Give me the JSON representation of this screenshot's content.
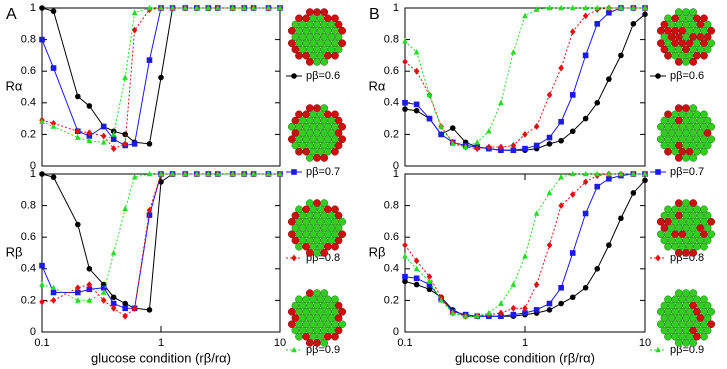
{
  "chart_data": [
    {
      "type": "line",
      "panel": "A",
      "ylabel": "Rα",
      "log_x": true,
      "x": [
        0.1,
        0.125,
        0.2,
        0.25,
        0.33,
        0.4,
        0.5,
        0.6,
        0.8,
        1,
        1.25,
        1.6,
        2,
        2.5,
        3,
        4,
        5,
        6,
        8,
        10
      ],
      "xlim": [
        0.1,
        10
      ],
      "ylim": [
        0,
        1
      ],
      "yticks": [
        0,
        0.2,
        0.4,
        0.6,
        0.8,
        1
      ],
      "series": [
        {
          "name": "pβ=0.6",
          "color": "#000000",
          "marker": "circle",
          "dashed": false,
          "values": [
            1.0,
            0.98,
            0.44,
            0.38,
            0.25,
            0.22,
            0.2,
            0.15,
            0.14,
            0.56,
            1,
            1,
            1,
            1,
            1,
            1,
            1,
            1,
            1,
            1
          ]
        },
        {
          "name": "pβ=0.7",
          "color": "#1a1aee",
          "marker": "square",
          "dashed": false,
          "values": [
            0.8,
            0.62,
            0.22,
            0.19,
            0.25,
            0.17,
            0.13,
            0.14,
            0.67,
            1,
            1,
            1,
            1,
            1,
            1,
            1,
            1,
            1,
            1,
            1
          ]
        },
        {
          "name": "pβ=0.8",
          "color": "#e01010",
          "marker": "diamond",
          "dashed": true,
          "values": [
            0.29,
            0.27,
            0.22,
            0.21,
            0.19,
            0.11,
            0.14,
            0.86,
            0.99,
            1,
            1,
            1,
            1,
            1,
            1,
            1,
            1,
            1,
            1,
            1
          ]
        },
        {
          "name": "pβ=0.9",
          "color": "#22dd22",
          "marker": "triangle",
          "dashed": true,
          "values": [
            0.28,
            0.25,
            0.18,
            0.16,
            0.15,
            0.2,
            0.56,
            0.97,
            1,
            1,
            1,
            1,
            1,
            1,
            1,
            1,
            1,
            1,
            1,
            1
          ]
        }
      ]
    },
    {
      "type": "line",
      "ylabel": "Rβ",
      "xlabel": "glucose condition (rβ/rα)",
      "log_x": true,
      "x": [
        0.1,
        0.125,
        0.2,
        0.25,
        0.33,
        0.4,
        0.5,
        0.6,
        0.8,
        1,
        1.25,
        1.6,
        2,
        2.5,
        3,
        4,
        5,
        6,
        8,
        10
      ],
      "xlim": [
        0.1,
        10
      ],
      "xticks": [
        0.1,
        1,
        10
      ],
      "ylim": [
        0,
        1
      ],
      "yticks": [
        0,
        0.2,
        0.4,
        0.6,
        0.8,
        1
      ],
      "series": [
        {
          "color": "#000000",
          "marker": "circle",
          "dashed": false,
          "values": [
            1.0,
            0.98,
            0.68,
            0.4,
            0.3,
            0.22,
            0.18,
            0.15,
            0.14,
            0.95,
            1,
            1,
            1,
            1,
            1,
            1,
            1,
            1,
            1,
            1
          ]
        },
        {
          "color": "#1a1aee",
          "marker": "square",
          "dashed": false,
          "values": [
            0.42,
            0.25,
            0.25,
            0.27,
            0.28,
            0.18,
            0.15,
            0.15,
            0.74,
            1,
            1,
            1,
            1,
            1,
            1,
            1,
            1,
            1,
            1,
            1
          ]
        },
        {
          "color": "#e01010",
          "marker": "diamond",
          "dashed": true,
          "values": [
            0.19,
            0.2,
            0.28,
            0.3,
            0.2,
            0.15,
            0.1,
            0.15,
            0.77,
            1,
            1,
            1,
            1,
            1,
            1,
            1,
            1,
            1,
            1,
            1
          ]
        },
        {
          "color": "#22dd22",
          "marker": "triangle",
          "dashed": true,
          "values": [
            0.3,
            0.28,
            0.2,
            0.2,
            0.25,
            0.5,
            0.78,
            0.98,
            1,
            1,
            1,
            1,
            1,
            1,
            1,
            1,
            1,
            1,
            1,
            1
          ]
        }
      ]
    },
    {
      "type": "line",
      "panel": "B",
      "ylabel": "Rα",
      "log_x": true,
      "x": [
        0.1,
        0.125,
        0.16,
        0.2,
        0.25,
        0.32,
        0.4,
        0.5,
        0.63,
        0.8,
        1,
        1.25,
        1.6,
        2,
        2.5,
        3.2,
        4,
        5,
        6.3,
        8,
        10
      ],
      "xlim": [
        0.1,
        10
      ],
      "ylim": [
        0,
        1
      ],
      "yticks": [
        0,
        0.2,
        0.4,
        0.6,
        0.8,
        1
      ],
      "series": [
        {
          "name": "pβ=0.6",
          "color": "#000000",
          "marker": "circle",
          "dashed": false,
          "values": [
            0.36,
            0.35,
            0.3,
            0.2,
            0.24,
            0.15,
            0.12,
            0.11,
            0.1,
            0.1,
            0.1,
            0.11,
            0.14,
            0.16,
            0.22,
            0.3,
            0.4,
            0.55,
            0.7,
            0.9,
            0.96
          ]
        },
        {
          "name": "pβ=0.7",
          "color": "#1a1aee",
          "marker": "square",
          "dashed": false,
          "values": [
            0.4,
            0.39,
            0.3,
            0.2,
            0.15,
            0.13,
            0.12,
            0.11,
            0.1,
            0.1,
            0.11,
            0.13,
            0.18,
            0.28,
            0.45,
            0.7,
            0.9,
            0.97,
            1,
            1,
            1
          ]
        },
        {
          "name": "pβ=0.8",
          "color": "#e01010",
          "marker": "diamond",
          "dashed": true,
          "values": [
            0.66,
            0.6,
            0.45,
            0.25,
            0.15,
            0.12,
            0.11,
            0.12,
            0.12,
            0.13,
            0.2,
            0.25,
            0.45,
            0.62,
            0.85,
            0.95,
            0.99,
            1,
            1,
            1,
            1
          ]
        },
        {
          "name": "pβ=0.9",
          "color": "#22dd22",
          "marker": "triangle",
          "dashed": true,
          "values": [
            0.79,
            0.72,
            0.45,
            0.25,
            0.14,
            0.12,
            0.15,
            0.22,
            0.4,
            0.72,
            0.95,
            0.99,
            1,
            1,
            1,
            1,
            1,
            1,
            1,
            1,
            1
          ]
        }
      ]
    },
    {
      "type": "line",
      "ylabel": "Rβ",
      "xlabel": "glucose condition (rβ/rα)",
      "log_x": true,
      "x": [
        0.1,
        0.125,
        0.16,
        0.2,
        0.25,
        0.32,
        0.4,
        0.5,
        0.63,
        0.8,
        1,
        1.25,
        1.6,
        2,
        2.5,
        3.2,
        4,
        5,
        6.3,
        8,
        10
      ],
      "xlim": [
        0.1,
        10
      ],
      "xticks": [
        0.1,
        1,
        10
      ],
      "ylim": [
        0,
        1
      ],
      "yticks": [
        0,
        0.2,
        0.4,
        0.6,
        0.8,
        1
      ],
      "series": [
        {
          "color": "#000000",
          "marker": "circle",
          "dashed": false,
          "values": [
            0.32,
            0.3,
            0.27,
            0.22,
            0.14,
            0.1,
            0.1,
            0.1,
            0.1,
            0.1,
            0.11,
            0.12,
            0.14,
            0.18,
            0.22,
            0.28,
            0.4,
            0.55,
            0.72,
            0.88,
            0.96
          ]
        },
        {
          "color": "#1a1aee",
          "marker": "square",
          "dashed": false,
          "values": [
            0.35,
            0.34,
            0.3,
            0.21,
            0.13,
            0.11,
            0.1,
            0.1,
            0.1,
            0.11,
            0.12,
            0.14,
            0.18,
            0.28,
            0.5,
            0.75,
            0.92,
            0.97,
            0.99,
            1,
            1
          ]
        },
        {
          "color": "#e01010",
          "marker": "diamond",
          "dashed": true,
          "values": [
            0.55,
            0.45,
            0.35,
            0.22,
            0.12,
            0.1,
            0.1,
            0.11,
            0.12,
            0.15,
            0.15,
            0.3,
            0.55,
            0.8,
            0.87,
            0.95,
            0.99,
            1,
            1,
            1,
            1
          ]
        },
        {
          "color": "#22dd22",
          "marker": "triangle",
          "dashed": true,
          "values": [
            0.48,
            0.4,
            0.32,
            0.2,
            0.12,
            0.1,
            0.1,
            0.12,
            0.18,
            0.3,
            0.48,
            0.75,
            0.88,
            0.98,
            1,
            1,
            1,
            1,
            1,
            1,
            1
          ]
        }
      ]
    }
  ]
}
